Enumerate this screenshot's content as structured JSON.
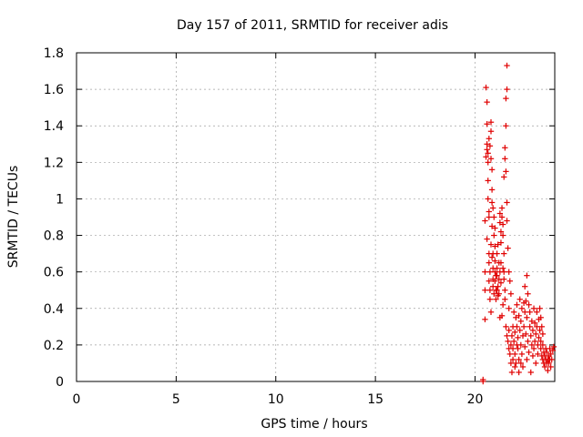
{
  "chart_data": {
    "type": "scatter",
    "title": "Day 157 of 2011, SRMTID for receiver adis",
    "xlabel": "GPS time / hours",
    "ylabel": "SRMTID / TECUs",
    "xlim": [
      0,
      24
    ],
    "ylim": [
      0,
      1.8
    ],
    "xticks": [
      0,
      5,
      10,
      15,
      20
    ],
    "xtick_labels": [
      "0",
      "5",
      "10",
      "15",
      "20"
    ],
    "yticks": [
      0,
      0.2,
      0.4,
      0.6,
      0.8,
      1,
      1.2,
      1.4,
      1.6,
      1.8
    ],
    "ytick_labels": [
      "0",
      "0.2",
      "0.4",
      "0.6",
      "0.8",
      "1",
      "1.2",
      "1.4",
      "1.6",
      "1.8"
    ],
    "grid": true,
    "marker": "+",
    "color": "#e00000",
    "series": [
      {
        "name": "adis",
        "points": [
          [
            20.4,
            0.0
          ],
          [
            20.4,
            0.01
          ],
          [
            20.5,
            0.34
          ],
          [
            20.5,
            0.5
          ],
          [
            20.5,
            0.6
          ],
          [
            20.5,
            0.88
          ],
          [
            20.55,
            1.23
          ],
          [
            20.55,
            1.61
          ],
          [
            20.6,
            1.53
          ],
          [
            20.6,
            1.41
          ],
          [
            20.6,
            1.3
          ],
          [
            20.65,
            1.25
          ],
          [
            20.65,
            1.2
          ],
          [
            20.65,
            1.1
          ],
          [
            20.65,
            1.0
          ],
          [
            20.7,
            0.93
          ],
          [
            20.7,
            0.9
          ],
          [
            20.6,
            0.78
          ],
          [
            20.7,
            0.7
          ],
          [
            20.7,
            0.65
          ],
          [
            20.75,
            0.6
          ],
          [
            20.7,
            0.55
          ],
          [
            20.75,
            0.5
          ],
          [
            20.75,
            0.45
          ],
          [
            20.8,
            0.38
          ],
          [
            20.8,
            1.42
          ],
          [
            20.8,
            1.37
          ],
          [
            20.75,
            1.29
          ],
          [
            20.8,
            1.22
          ],
          [
            20.85,
            1.16
          ],
          [
            20.85,
            1.05
          ],
          [
            20.85,
            0.98
          ],
          [
            20.85,
            0.85
          ],
          [
            20.8,
            0.75
          ],
          [
            20.85,
            0.68
          ],
          [
            20.9,
            0.62
          ],
          [
            20.9,
            0.56
          ],
          [
            20.9,
            0.52
          ],
          [
            20.95,
            0.48
          ],
          [
            20.95,
            0.9
          ],
          [
            20.95,
            0.8
          ],
          [
            21.0,
            0.74
          ],
          [
            21.0,
            0.66
          ],
          [
            21.0,
            0.6
          ],
          [
            21.0,
            0.55
          ],
          [
            21.05,
            0.5
          ],
          [
            21.05,
            0.45
          ],
          [
            21.1,
            0.7
          ],
          [
            21.1,
            0.62
          ],
          [
            21.1,
            0.58
          ],
          [
            21.15,
            0.52
          ],
          [
            21.15,
            0.47
          ],
          [
            21.2,
            0.65
          ],
          [
            21.2,
            0.56
          ],
          [
            21.25,
            0.92
          ],
          [
            21.25,
            0.87
          ],
          [
            21.3,
            0.82
          ],
          [
            21.3,
            0.76
          ],
          [
            21.25,
            0.6
          ],
          [
            21.3,
            0.54
          ],
          [
            21.35,
            0.95
          ],
          [
            21.35,
            0.9
          ],
          [
            21.4,
            0.86
          ],
          [
            21.4,
            0.8
          ],
          [
            21.45,
            0.7
          ],
          [
            21.4,
            0.62
          ],
          [
            21.45,
            0.56
          ],
          [
            21.5,
            0.5
          ],
          [
            21.5,
            0.45
          ],
          [
            21.35,
            0.36
          ],
          [
            21.4,
            0.42
          ],
          [
            21.45,
            1.12
          ],
          [
            21.5,
            1.22
          ],
          [
            21.5,
            1.28
          ],
          [
            21.55,
            1.4
          ],
          [
            21.55,
            1.55
          ],
          [
            21.6,
            1.6
          ],
          [
            21.6,
            1.73
          ],
          [
            21.55,
            1.15
          ],
          [
            21.6,
            0.98
          ],
          [
            21.6,
            0.88
          ],
          [
            21.65,
            0.73
          ],
          [
            21.7,
            0.6
          ],
          [
            21.75,
            0.55
          ],
          [
            21.8,
            0.48
          ],
          [
            21.55,
            0.3
          ],
          [
            21.6,
            0.25
          ],
          [
            21.65,
            0.22
          ],
          [
            21.7,
            0.28
          ],
          [
            21.7,
            0.18
          ],
          [
            21.75,
            0.15
          ],
          [
            21.8,
            0.2
          ],
          [
            21.8,
            0.1
          ],
          [
            21.85,
            0.05
          ],
          [
            21.85,
            0.25
          ],
          [
            21.9,
            0.3
          ],
          [
            21.9,
            0.18
          ],
          [
            21.95,
            0.22
          ],
          [
            22.0,
            0.27
          ],
          [
            22.0,
            0.15
          ],
          [
            22.05,
            0.35
          ],
          [
            22.05,
            0.1
          ],
          [
            22.1,
            0.42
          ],
          [
            22.1,
            0.3
          ],
          [
            22.15,
            0.24
          ],
          [
            22.15,
            0.18
          ],
          [
            22.2,
            0.36
          ],
          [
            22.2,
            0.12
          ],
          [
            22.25,
            0.28
          ],
          [
            22.25,
            0.45
          ],
          [
            22.3,
            0.2
          ],
          [
            22.3,
            0.33
          ],
          [
            22.35,
            0.4
          ],
          [
            22.35,
            0.15
          ],
          [
            22.4,
            0.25
          ],
          [
            22.4,
            0.08
          ],
          [
            22.45,
            0.43
          ],
          [
            22.45,
            0.3
          ],
          [
            22.5,
            0.38
          ],
          [
            22.5,
            0.19
          ],
          [
            22.5,
            0.52
          ],
          [
            22.55,
            0.44
          ],
          [
            22.55,
            0.26
          ],
          [
            22.6,
            0.58
          ],
          [
            22.6,
            0.35
          ],
          [
            22.6,
            0.12
          ],
          [
            22.65,
            0.48
          ],
          [
            22.65,
            0.22
          ],
          [
            22.7,
            0.42
          ],
          [
            22.7,
            0.16
          ],
          [
            22.75,
            0.3
          ],
          [
            22.75,
            0.38
          ],
          [
            22.8,
            0.25
          ],
          [
            22.8,
            0.05
          ],
          [
            22.85,
            0.2
          ],
          [
            22.85,
            0.33
          ],
          [
            22.9,
            0.28
          ],
          [
            22.9,
            0.14
          ],
          [
            22.95,
            0.4
          ],
          [
            22.95,
            0.18
          ],
          [
            23.0,
            0.32
          ],
          [
            23.0,
            0.22
          ],
          [
            23.05,
            0.26
          ],
          [
            23.05,
            0.1
          ],
          [
            23.1,
            0.38
          ],
          [
            23.1,
            0.3
          ],
          [
            23.15,
            0.2
          ],
          [
            23.15,
            0.15
          ],
          [
            23.2,
            0.34
          ],
          [
            23.2,
            0.24
          ],
          [
            23.25,
            0.28
          ],
          [
            23.25,
            0.4
          ],
          [
            23.3,
            0.18
          ],
          [
            23.3,
            0.22
          ],
          [
            23.35,
            0.14
          ],
          [
            23.35,
            0.3
          ],
          [
            23.4,
            0.12
          ],
          [
            23.4,
            0.2
          ],
          [
            23.45,
            0.16
          ],
          [
            23.45,
            0.1
          ],
          [
            23.5,
            0.14
          ],
          [
            23.5,
            0.08
          ],
          [
            23.55,
            0.12
          ],
          [
            23.55,
            0.18
          ],
          [
            23.6,
            0.1
          ],
          [
            23.6,
            0.16
          ],
          [
            23.65,
            0.12
          ],
          [
            23.65,
            0.06
          ],
          [
            23.7,
            0.14
          ],
          [
            23.7,
            0.1
          ],
          [
            23.75,
            0.18
          ],
          [
            23.75,
            0.12
          ],
          [
            23.8,
            0.15
          ],
          [
            23.8,
            0.08
          ],
          [
            23.85,
            0.12
          ],
          [
            23.9,
            0.17
          ],
          [
            23.95,
            0.19
          ],
          [
            23.3,
            0.35
          ],
          [
            23.4,
            0.26
          ],
          [
            22.2,
            0.05
          ],
          [
            22.0,
            0.08
          ],
          [
            21.95,
            0.38
          ],
          [
            22.1,
            0.2
          ],
          [
            22.3,
            0.1
          ],
          [
            21.9,
            0.12
          ],
          [
            21.7,
            0.4
          ],
          [
            21.25,
            0.35
          ],
          [
            21.15,
            0.75
          ],
          [
            21.05,
            0.58
          ],
          [
            21.0,
            0.84
          ],
          [
            20.9,
            0.95
          ],
          [
            20.7,
            1.33
          ],
          [
            20.6,
            1.27
          ],
          [
            20.9,
            0.7
          ],
          [
            21.1,
            0.5
          ],
          [
            21.2,
            0.48
          ],
          [
            21.3,
            0.65
          ],
          [
            21.45,
            0.6
          ]
        ]
      }
    ]
  }
}
